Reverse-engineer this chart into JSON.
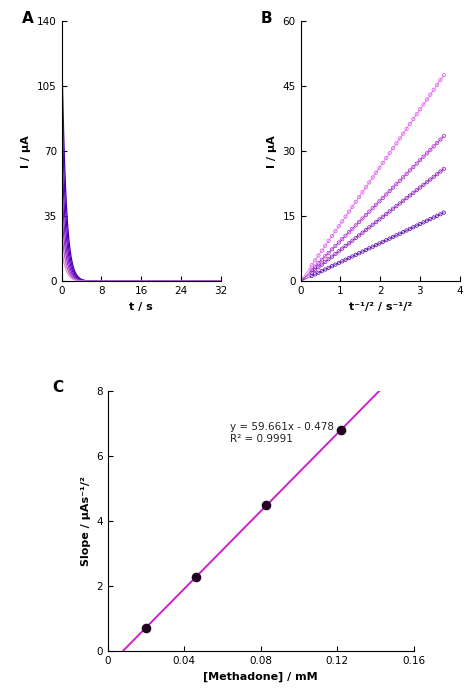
{
  "panel_A": {
    "label": "A",
    "ylabel": "I / μA",
    "xlabel": "t / s",
    "xlim": [
      0,
      32
    ],
    "ylim": [
      0,
      140
    ],
    "yticks": [
      0,
      35,
      70,
      105,
      140
    ],
    "xticks": [
      0,
      8,
      16,
      24,
      32
    ],
    "colors": [
      "#4400aa",
      "#5500bb",
      "#6600cc",
      "#7722cc",
      "#9933cc",
      "#bb55cc",
      "#dd88dd"
    ],
    "amplitudes": [
      130,
      100,
      75,
      55,
      40,
      28,
      18
    ],
    "decay": 1.2
  },
  "panel_B": {
    "label": "B",
    "ylabel": "I / μA",
    "xlabel": "t⁻¹/² / s⁻¹/²",
    "xlim": [
      0,
      4
    ],
    "ylim": [
      0,
      60
    ],
    "yticks": [
      0,
      15,
      30,
      45,
      60
    ],
    "xticks": [
      0,
      1,
      2,
      3,
      4
    ],
    "slopes": [
      13.2,
      9.3,
      7.2,
      4.4
    ],
    "colors": [
      "#dd55ee",
      "#aa22cc",
      "#8811bb",
      "#5500aa"
    ],
    "x_start": 0.28,
    "x_end": 3.6,
    "n_points": 40
  },
  "panel_C": {
    "label": "C",
    "ylabel": "Slope / μAs⁻¹/²",
    "xlabel": "[Methadone] / mM",
    "xlim": [
      0,
      0.16
    ],
    "ylim": [
      0,
      8
    ],
    "yticks": [
      0,
      2,
      4,
      6,
      8
    ],
    "xticks": [
      0,
      0.04,
      0.08,
      0.12,
      0.16
    ],
    "x_data": [
      0.02,
      0.046,
      0.083,
      0.122
    ],
    "line_slope": 59.661,
    "line_intercept": -0.478,
    "line_color": "#cc22cc",
    "dot_color": "#220022",
    "equation": "y = 59.661x - 0.478",
    "r2": "R² = 0.9991"
  }
}
